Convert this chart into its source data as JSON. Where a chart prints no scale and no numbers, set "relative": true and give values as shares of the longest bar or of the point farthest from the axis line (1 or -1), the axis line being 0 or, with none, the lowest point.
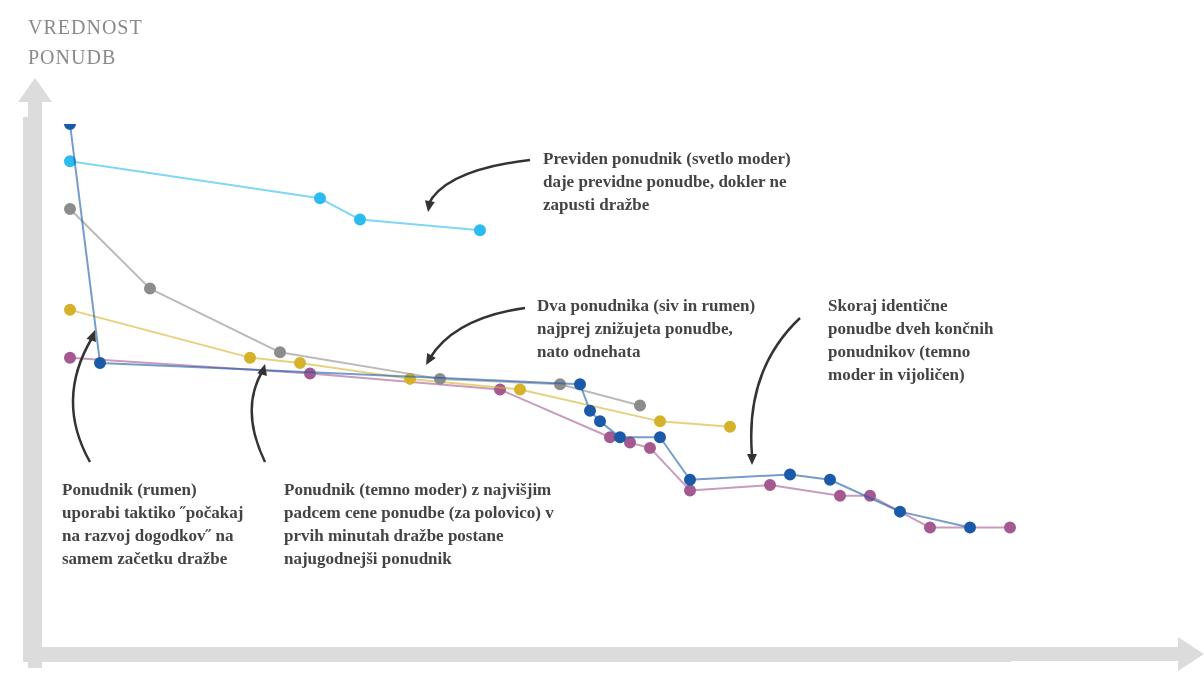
{
  "chart_data": {
    "type": "line",
    "relative": true,
    "marker": "circle",
    "legend": false,
    "ylabel": "VREDNOST PONUDB",
    "categories": [
      null,
      null,
      null,
      null,
      null,
      null,
      null,
      null,
      null,
      null,
      null,
      null,
      null,
      null,
      null,
      null,
      null,
      null,
      null,
      null,
      null,
      null,
      null,
      null,
      null,
      null,
      null,
      null,
      null,
      null,
      null,
      null,
      null,
      null,
      null,
      null,
      null,
      null,
      null,
      null,
      null,
      null,
      null,
      null,
      null,
      null,
      null,
      null,
      null,
      null,
      null,
      null,
      null,
      null,
      null,
      null,
      null,
      null,
      null,
      null,
      null,
      null,
      null,
      null,
      null,
      null,
      null,
      null,
      null,
      null,
      null,
      null,
      null,
      null,
      null,
      null,
      null,
      null,
      null,
      null,
      null,
      null,
      null,
      null,
      null,
      null,
      null,
      null,
      null,
      null,
      null,
      null,
      null,
      null,
      null,
      null,
      null,
      null,
      null
    ],
    "series": [
      {
        "color": "#1a5aa8",
        "values": [
          null,
          null,
          null,
          null,
          1.0,
          null,
          null,
          0.55,
          null,
          null,
          null,
          null,
          null,
          null,
          null,
          null,
          null,
          null,
          null,
          null,
          null,
          null,
          null,
          null,
          null,
          null,
          null,
          null,
          null,
          null,
          null,
          null,
          null,
          null,
          null,
          null,
          null,
          null,
          null,
          null,
          null,
          null,
          null,
          null,
          null,
          null,
          null,
          null,
          null,
          null,
          null,
          null,
          null,
          null,
          null,
          0.51,
          0.46,
          0.44,
          null,
          0.41,
          null,
          null,
          null,
          0.41,
          null,
          null,
          0.33,
          null,
          null,
          null,
          null,
          null,
          null,
          null,
          null,
          null,
          0.34,
          null,
          null,
          null,
          0.33,
          null,
          null,
          null,
          null,
          null,
          null,
          0.27,
          null,
          null,
          null,
          null,
          null,
          null,
          0.24,
          null,
          null,
          null,
          null
        ]
      },
      {
        "color": "#2bbbef",
        "values": [
          null,
          null,
          null,
          null,
          0.93,
          null,
          null,
          null,
          null,
          null,
          null,
          null,
          null,
          null,
          null,
          null,
          null,
          null,
          null,
          null,
          null,
          null,
          null,
          null,
          null,
          null,
          null,
          null,
          null,
          0.86,
          null,
          null,
          null,
          0.82,
          null,
          null,
          null,
          null,
          null,
          null,
          null,
          null,
          null,
          null,
          null,
          0.8,
          null,
          null,
          null,
          null,
          null,
          null,
          null,
          null,
          null,
          null,
          null,
          null,
          null,
          null,
          null,
          null,
          null,
          null,
          null,
          null,
          null,
          null,
          null,
          null,
          null,
          null,
          null,
          null,
          null,
          null,
          null,
          null,
          null,
          null,
          null,
          null,
          null,
          null,
          null,
          null,
          null,
          null,
          null,
          null,
          null,
          null,
          null,
          null,
          null,
          null,
          null,
          null,
          null
        ]
      },
      {
        "color": "#8c8c8c",
        "values": [
          null,
          null,
          null,
          null,
          0.84,
          null,
          null,
          null,
          null,
          null,
          null,
          null,
          0.69,
          null,
          null,
          null,
          null,
          null,
          null,
          null,
          null,
          null,
          null,
          null,
          null,
          0.57,
          null,
          null,
          null,
          null,
          null,
          null,
          null,
          null,
          null,
          null,
          null,
          null,
          null,
          null,
          null,
          0.52,
          null,
          null,
          null,
          null,
          null,
          null,
          null,
          null,
          null,
          null,
          null,
          0.51,
          null,
          null,
          null,
          null,
          null,
          null,
          null,
          0.47,
          null,
          null,
          null,
          null,
          null,
          null,
          null,
          null,
          null,
          null,
          null,
          null,
          null,
          null,
          null,
          null,
          null,
          null,
          null,
          null,
          null,
          null,
          null,
          null,
          null,
          null,
          null,
          null,
          null,
          null,
          null,
          null,
          null,
          null,
          null,
          null,
          null
        ]
      },
      {
        "color": "#d6b22a",
        "values": [
          null,
          null,
          null,
          null,
          0.65,
          null,
          null,
          null,
          null,
          null,
          null,
          null,
          null,
          null,
          null,
          null,
          null,
          null,
          null,
          null,
          null,
          null,
          0.56,
          null,
          null,
          null,
          null,
          0.55,
          null,
          null,
          null,
          null,
          null,
          null,
          null,
          null,
          null,
          null,
          0.52,
          null,
          null,
          null,
          null,
          null,
          null,
          null,
          null,
          null,
          null,
          0.5,
          null,
          null,
          null,
          null,
          null,
          null,
          null,
          null,
          null,
          null,
          null,
          null,
          null,
          0.44,
          null,
          null,
          null,
          null,
          null,
          null,
          0.43,
          null,
          null,
          null,
          null,
          null,
          null,
          null,
          null,
          null,
          null,
          null,
          null,
          null,
          null,
          null,
          null,
          null,
          null,
          null,
          null,
          null,
          null,
          null,
          null,
          null,
          null,
          null,
          null
        ]
      },
      {
        "color": "#a45a90",
        "values": [
          null,
          null,
          null,
          null,
          0.56,
          null,
          null,
          null,
          null,
          null,
          null,
          null,
          null,
          null,
          null,
          null,
          null,
          null,
          null,
          null,
          null,
          null,
          null,
          null,
          null,
          null,
          null,
          null,
          0.53,
          null,
          null,
          null,
          null,
          null,
          null,
          null,
          null,
          null,
          null,
          null,
          null,
          null,
          null,
          null,
          null,
          null,
          null,
          0.5,
          null,
          null,
          null,
          null,
          null,
          null,
          null,
          null,
          null,
          null,
          0.41,
          null,
          0.4,
          null,
          0.39,
          null,
          null,
          null,
          0.31,
          null,
          null,
          null,
          null,
          null,
          null,
          null,
          0.32,
          null,
          null,
          null,
          null,
          null,
          null,
          0.3,
          null,
          null,
          0.3,
          null,
          null,
          null,
          null,
          null,
          0.24,
          null,
          null,
          null,
          null,
          null,
          null,
          null,
          0.24
        ]
      }
    ],
    "annotations": [
      "Previden ponudnik (svetlo moder) daje previdne ponudbe, dokler ne zapusti dražbe",
      "Dva ponudnika (siv in rumen) najprej znižujeta ponudbe, nato odnehata",
      "Skoraj identične ponudbe dveh končnih ponudnikov (temno moder in vijoličen)",
      "Ponudnik (rumen) uporabi taktiko ˝počakaj na razvoj dogodkov˝ na samem začetku dražbe",
      "Ponudnik (temno moder) z najvišjim padcem cene ponudbe (za polovico) v prvih minutah dražbe postane najugodnejši ponudnik"
    ]
  }
}
